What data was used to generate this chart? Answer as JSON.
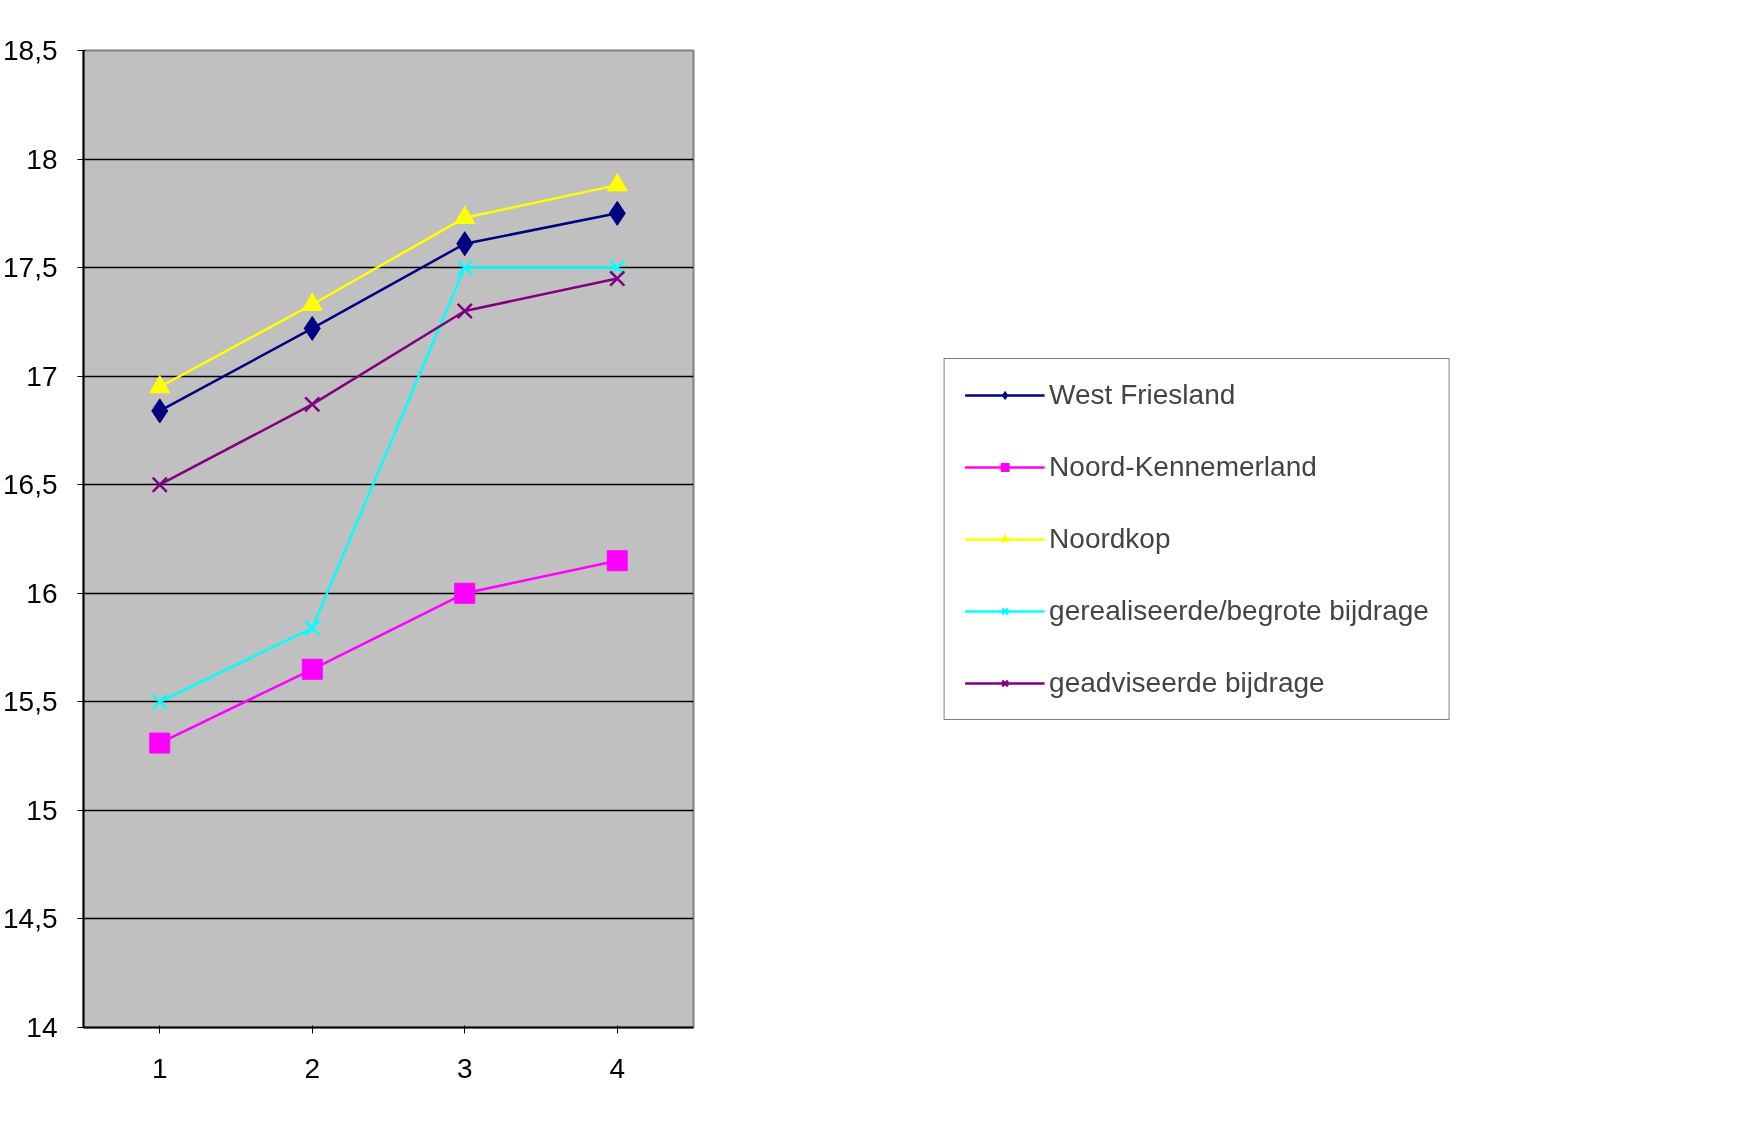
{
  "chart_data": {
    "type": "line",
    "categories": [
      "1",
      "2",
      "3",
      "4"
    ],
    "ylim": [
      14,
      18.5
    ],
    "yticks": [
      14,
      {
        "value": 14.5,
        "label": "14,5"
      },
      15,
      {
        "value": 15.5,
        "label": "15,5"
      },
      16,
      {
        "value": 16.5,
        "label": "16,5"
      },
      17,
      {
        "value": 17.5,
        "label": "17,5"
      },
      18,
      {
        "value": 18.5,
        "label": "18,5"
      }
    ],
    "grid": "y",
    "legend": "right",
    "line_style": "solid",
    "series": [
      {
        "name": "West Friesland",
        "color": "#000080",
        "marker": "diamond",
        "values": [
          16.84,
          17.22,
          17.61,
          17.75
        ]
      },
      {
        "name": "Noord-Kennemerland",
        "color": "#ff00ff",
        "marker": "square",
        "values": [
          15.31,
          15.65,
          16.0,
          16.15
        ]
      },
      {
        "name": "Noordkop",
        "color": "#ffff00",
        "marker": "triangle",
        "values": [
          16.95,
          17.33,
          17.73,
          17.88
        ]
      },
      {
        "name": "gerealiseerde/begrote bijdrage",
        "color": "#00ffff",
        "marker": "cross",
        "values": [
          15.5,
          15.84,
          17.5,
          17.5
        ]
      },
      {
        "name": "geadviseerde bijdrage",
        "color": "#800080",
        "marker": "cross",
        "values": [
          16.5,
          16.87,
          17.3,
          17.45
        ]
      }
    ]
  }
}
